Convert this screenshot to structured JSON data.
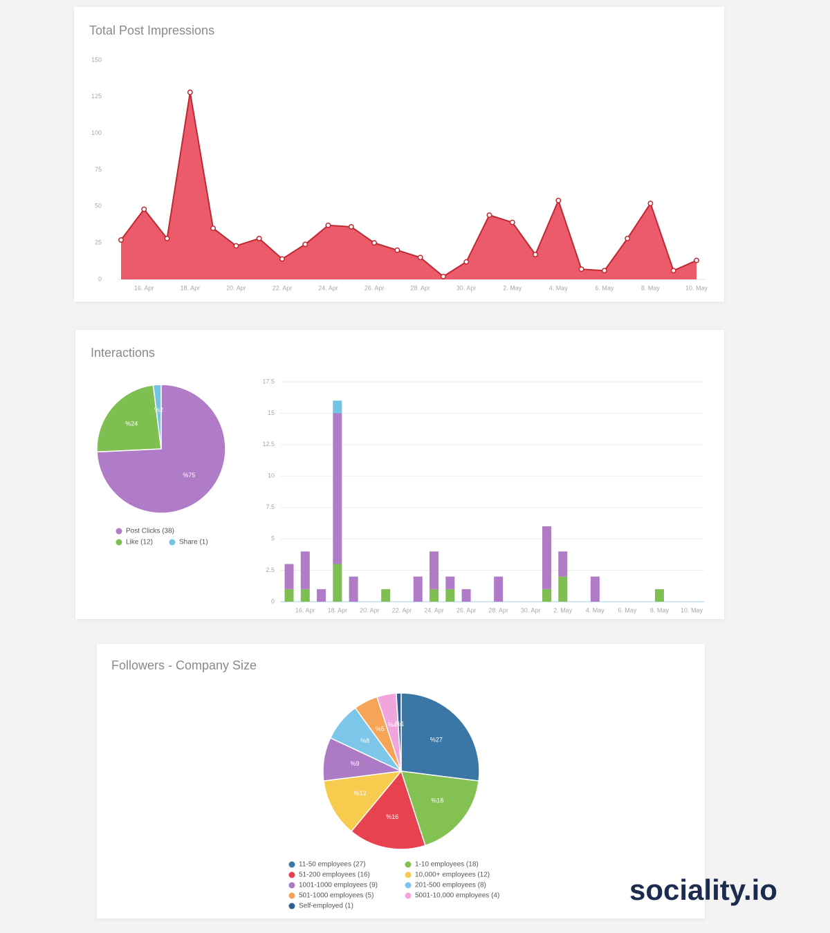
{
  "chart_data": [
    {
      "type": "area",
      "title": "Total Post Impressions",
      "categories": [
        null,
        "16. Apr",
        null,
        "18. Apr",
        null,
        "20. Apr",
        null,
        "22. Apr",
        null,
        "24. Apr",
        null,
        "26. Apr",
        null,
        "28. Apr",
        null,
        "30. Apr",
        null,
        "2. May",
        null,
        "4. May",
        null,
        "6. May",
        null,
        "8. May",
        null,
        "10. May"
      ],
      "values": [
        27,
        48,
        28,
        128,
        35,
        23,
        28,
        14,
        24,
        37,
        36,
        25,
        20,
        15,
        2,
        12,
        44,
        39,
        17,
        54,
        7,
        6,
        28,
        52,
        6,
        13
      ],
      "color": "#ec5b6c",
      "line_color": "#c0272f",
      "ylim": [
        0,
        150
      ],
      "yticks": [
        0,
        25,
        50,
        75,
        100,
        125,
        150
      ],
      "grid": false
    },
    {
      "type": "pie",
      "title": "Interactions",
      "categories": [
        "Post Clicks (38)",
        "Like (12)",
        "Share (1)"
      ],
      "values": [
        75,
        24,
        2
      ],
      "value_labels": [
        "%75",
        "%24",
        "%2"
      ],
      "colors": [
        "#b07cc8",
        "#7fbf52",
        "#72c3e6"
      ]
    },
    {
      "type": "bar",
      "stacked": true,
      "categories": [
        null,
        "16. Apr",
        null,
        "18. Apr",
        null,
        "20. Apr",
        null,
        "22. Apr",
        null,
        "24. Apr",
        null,
        "26. Apr",
        null,
        "28. Apr",
        null,
        "30. Apr",
        null,
        "2. May",
        null,
        "4. May",
        null,
        "6. May",
        null,
        "8. May",
        null,
        "10. May"
      ],
      "series": [
        {
          "color": "#7fbf52",
          "values": [
            1,
            1,
            0,
            3,
            0,
            0,
            1,
            0,
            0,
            1,
            1,
            0,
            0,
            0,
            0,
            0,
            1,
            2,
            0,
            0,
            0,
            0,
            0,
            1,
            0,
            0
          ]
        },
        {
          "color": "#b07cc8",
          "values": [
            2,
            3,
            1,
            12,
            2,
            0,
            0,
            0,
            2,
            3,
            1,
            1,
            0,
            2,
            0,
            0,
            5,
            2,
            0,
            2,
            0,
            0,
            0,
            0,
            0,
            0
          ]
        },
        {
          "color": "#72c3e6",
          "values": [
            0,
            0,
            0,
            1,
            0,
            0,
            0,
            0,
            0,
            0,
            0,
            0,
            0,
            0,
            0,
            0,
            0,
            0,
            0,
            0,
            0,
            0,
            0,
            0,
            0,
            0
          ]
        }
      ],
      "ylim": [
        0,
        17.5
      ],
      "yticks": [
        0,
        2.5,
        5,
        7.5,
        10,
        12.5,
        15,
        17.5
      ],
      "grid": true
    },
    {
      "type": "pie",
      "title": "Followers - Company Size",
      "categories": [
        "11-50 employees (27)",
        "1-10 employees (18)",
        "51-200 employees (16)",
        "10,000+ employees (12)",
        "1001-1000 employees (9)",
        "201-500 employees (8)",
        "501-1000 employees (5)",
        "5001-10,000 employees (4)",
        "Self-employed (1)"
      ],
      "values": [
        27,
        18,
        16,
        12,
        9,
        8,
        5,
        4,
        1
      ],
      "value_labels": [
        "%27",
        "%18",
        "%16",
        "%12",
        "%9",
        "%8",
        "%5",
        "%4",
        "%1"
      ],
      "colors": [
        "#3a76a6",
        "#82c152",
        "#e8414f",
        "#f7cb4d",
        "#ad7ac6",
        "#7cc6ea",
        "#f5a458",
        "#f0a6dc",
        "#2f5f91"
      ]
    }
  ],
  "brand": "sociality.io"
}
